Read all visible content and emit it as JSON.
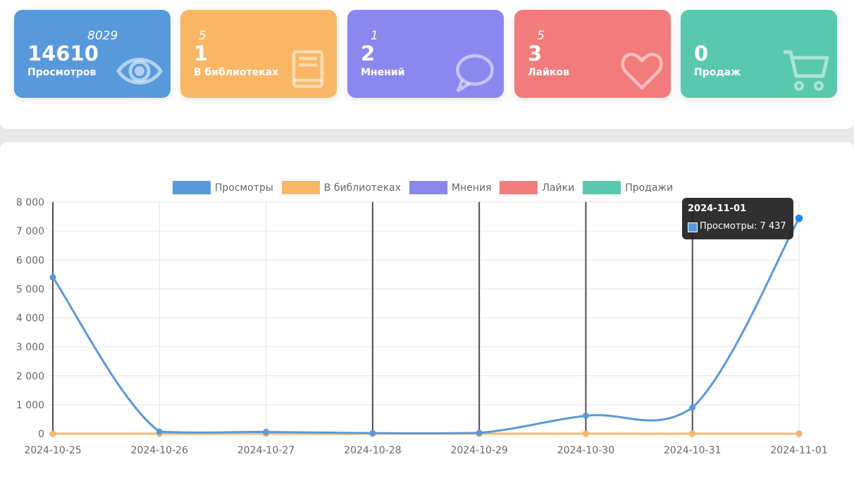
{
  "stats": [
    {
      "value": "14610",
      "secondary": "8029",
      "label": "Просмотров",
      "icon": "eye-icon",
      "color": "#5899dc"
    },
    {
      "value": "1",
      "secondary": "5",
      "label": "В библиотеках",
      "icon": "book-icon",
      "color": "#f9b765"
    },
    {
      "value": "2",
      "secondary": "1",
      "label": "Мнений",
      "icon": "speech-bubble-icon",
      "color": "#8a88ee"
    },
    {
      "value": "3",
      "secondary": "5",
      "label": "Лайков",
      "icon": "heart-icon",
      "color": "#f27b7c"
    },
    {
      "value": "0",
      "secondary": "",
      "label": "Продаж",
      "icon": "cart-icon",
      "color": "#58c9ad"
    }
  ],
  "chart_data": {
    "type": "line",
    "categories": [
      "2024-10-25",
      "2024-10-26",
      "2024-10-27",
      "2024-10-28",
      "2024-10-29",
      "2024-10-30",
      "2024-10-31",
      "2024-11-01"
    ],
    "series": [
      {
        "name": "Просмотры",
        "color": "#5899dc",
        "values": [
          5400,
          70,
          60,
          20,
          30,
          620,
          900,
          7437
        ]
      },
      {
        "name": "В библиотеках",
        "color": "#f9b765",
        "values": [
          0,
          0,
          0,
          0,
          0,
          0,
          0,
          0
        ]
      },
      {
        "name": "Мнения",
        "color": "#8a88ee",
        "values": [
          0,
          0,
          0,
          0,
          0,
          0,
          0,
          0
        ]
      },
      {
        "name": "Лайки",
        "color": "#f27b7c",
        "values": [
          0,
          0,
          0,
          0,
          0,
          0,
          0,
          0
        ]
      },
      {
        "name": "Продажи",
        "color": "#58c9ad",
        "values": [
          0,
          0,
          0,
          0,
          0,
          0,
          0,
          0
        ]
      }
    ],
    "ylim": [
      0,
      8000
    ],
    "yticks": [
      0,
      1000,
      2000,
      3000,
      4000,
      5000,
      6000,
      7000,
      8000
    ],
    "ytick_labels": [
      "0",
      "1 000",
      "2 000",
      "3 000",
      "4 000",
      "5 000",
      "6 000",
      "7 000",
      "8 000"
    ],
    "grid": true,
    "legend": "top-center"
  },
  "tooltip": {
    "title": "2024-11-01",
    "line": "Просмотры: 7 437"
  }
}
